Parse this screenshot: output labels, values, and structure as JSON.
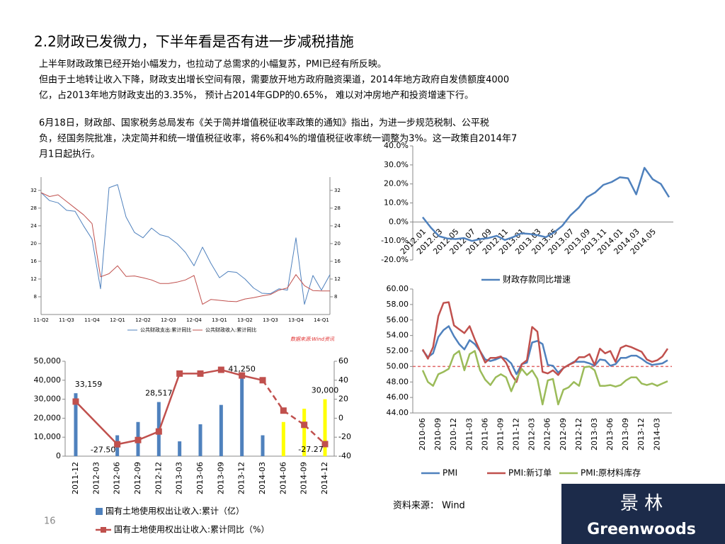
{
  "title": "2.2财政已发微力，下半年看是否有进一步减税措施",
  "paragraphs": [
    [
      "上半年财政政策已经开始小幅发力，也拉动了总需求的小幅复苏，PMI已经有所反映。",
      "但由于土地转让收入下降，财政支出增长空间有限，需要放开地方政府融资渠道，2014年地方政府自发债额度4000",
      "亿，占2013年地方财政支出的3.35%， 预计占2014年GDP的0.65%， 难以对冲房地产和投资增速下行。"
    ],
    [
      "6月18日，财政部、国家税务总局发布《关于简并增值税征收率政策的通知》指出，为进一步规范税制、公平税",
      "负，经国务院批准，决定简并和统一增值税征收率，将6%和4%的增值税征收率统一调整为3%。这一政策自2014年7",
      "月1日起执行。"
    ]
  ],
  "source": "资料来源： Wind",
  "page_number": "16",
  "logo": {
    "chinese": "景 林",
    "english": "Greenwoods"
  },
  "chart_data": [
    {
      "type": "line",
      "note": "数据来源:Wind资讯",
      "categories": [
        "11-Q2",
        null,
        null,
        "11-Q3",
        null,
        null,
        "11-Q4",
        null,
        null,
        "12-Q1",
        null,
        null,
        "12-Q2",
        null,
        null,
        "12-Q3",
        null,
        null,
        "12-Q4",
        null,
        null,
        "13-Q1",
        null,
        null,
        "13-Q2",
        null,
        null,
        "13-Q3",
        null,
        null,
        "13-Q4",
        null,
        null,
        "14-Q1",
        null
      ],
      "ylim": [
        4,
        35
      ],
      "yticks": [
        8,
        12,
        16,
        20,
        24,
        28,
        32
      ],
      "y2lim": [
        4,
        35
      ],
      "y2ticks": [
        8,
        12,
        16,
        20,
        24,
        28,
        32
      ],
      "series": [
        {
          "name": "公共财政支出:累计同比",
          "color": "#4f81bd",
          "values": [
            31.5,
            29.7,
            29.2,
            27.5,
            27.3,
            24,
            21,
            9.8,
            32.6,
            33.3,
            26,
            22.5,
            21.3,
            23.5,
            22,
            21.5,
            20,
            18,
            15,
            19.2,
            15.5,
            12.3,
            13.7,
            13.5,
            12,
            10,
            8.8,
            8.7,
            9.8,
            9.5,
            21.3,
            6.3,
            12.8,
            9.5,
            13
          ]
        },
        {
          "name": "公共财政收入:累计同比",
          "color": "#c0504d",
          "values": [
            31.5,
            30.6,
            31,
            29.5,
            28,
            26.5,
            24.5,
            12.5,
            13.2,
            15,
            12.6,
            12.7,
            12.3,
            11.8,
            11,
            11,
            11.3,
            11.8,
            12.8,
            6.3,
            7.4,
            7.2,
            7,
            6.9,
            7.5,
            7.8,
            8.2,
            8.5,
            9.5,
            10,
            13,
            10.5,
            9.4,
            9.3,
            9.3
          ]
        }
      ]
    },
    {
      "type": "line",
      "categories": [
        "2012.01",
        null,
        "2012.03",
        null,
        "2012.05",
        null,
        "2012.07",
        null,
        "2012.09",
        null,
        "2012.11",
        null,
        "2013.01",
        null,
        "2013.03",
        null,
        "2013.05",
        null,
        "2013.07",
        null,
        "2013.09",
        null,
        "2013.11",
        null,
        "2014.01",
        null,
        "2014.03",
        null,
        "2014.05",
        null,
        null
      ],
      "ylim": [
        -20,
        40
      ],
      "yticks": [
        {
          "value": -20,
          "label": "-20.0%"
        },
        {
          "value": -10,
          "label": "-10.0%"
        },
        {
          "value": 0,
          "label": "0.0%"
        },
        {
          "value": 10,
          "label": "10.0%"
        },
        {
          "value": 20,
          "label": "20.0%"
        },
        {
          "value": 30,
          "label": "30.0%"
        },
        {
          "value": 40,
          "label": "40.0%"
        }
      ],
      "series": [
        {
          "name": "财政存款同比增速",
          "color": "#4f81bd",
          "values": [
            2.5,
            -3,
            -7.5,
            -8.7,
            -9,
            -8.5,
            -10,
            -9,
            -8.5,
            -7.3,
            -9.5,
            -8,
            -6,
            -6.3,
            -7,
            -8,
            -5.5,
            -2,
            3.5,
            7.5,
            13,
            15.5,
            19.5,
            21,
            23.5,
            23,
            14.5,
            28.5,
            22.5,
            20,
            13
          ]
        }
      ]
    },
    {
      "type": "bar",
      "categories": [
        "2011-12",
        "2012-03",
        "2012-06",
        "2012-09",
        "2012-12",
        "2013-03",
        "2013-06",
        "2013-09",
        "2013-12",
        "2014-03",
        "2014-06",
        "2014-09",
        "2014-12"
      ],
      "ylim": [
        0,
        50000
      ],
      "yticks": [
        0,
        {
          "value": 10000,
          "label": "10,000"
        },
        {
          "value": 20000,
          "label": "20,000"
        },
        {
          "value": 30000,
          "label": "30,000"
        },
        {
          "value": 40000,
          "label": "40,000"
        },
        {
          "value": 50000,
          "label": "50,000"
        }
      ],
      "y2lim": [
        -40,
        60
      ],
      "y2ticks": [
        -40,
        -20,
        0,
        20,
        40,
        60
      ],
      "series": [
        {
          "name": "国有土地使用权出让收入:累计（亿）",
          "type": "bar",
          "color": "#4f81bd",
          "colors": [
            "#4f81bd",
            "#4f81bd",
            "#4f81bd",
            "#4f81bd",
            "#4f81bd",
            "#4f81bd",
            "#4f81bd",
            "#4f81bd",
            "#4f81bd",
            "#4f81bd",
            "#ffff00",
            "#ffff00",
            "#ffff00"
          ],
          "values": [
            33159,
            null,
            11000,
            18000,
            28517,
            7800,
            16800,
            27000,
            41250,
            11000,
            18000,
            25000,
            30000
          ],
          "value_labels": [
            "33,159",
            null,
            null,
            null,
            "28,517",
            null,
            null,
            null,
            "41,250",
            null,
            null,
            null,
            "30,000"
          ]
        },
        {
          "name": "国有土地使用权出让收入:累计同比（%）",
          "type": "line",
          "axis": "y2",
          "color": "#c0504d",
          "values": [
            17.5,
            null,
            -27.5,
            -23,
            -14,
            47,
            47,
            51,
            45,
            40,
            8,
            -7,
            -27.27
          ],
          "value_labels": [
            null,
            null,
            "-27.50",
            null,
            null,
            null,
            null,
            null,
            null,
            null,
            null,
            null,
            "-27.27"
          ]
        }
      ]
    },
    {
      "type": "line",
      "categories": [
        "2010-06",
        null,
        null,
        "2010-09",
        null,
        null,
        "2010-12",
        null,
        null,
        "2011-03",
        null,
        null,
        "2011-06",
        null,
        null,
        "2011-09",
        null,
        null,
        "2011-12",
        null,
        null,
        "2012-03",
        null,
        null,
        "2012-06",
        null,
        null,
        "2012-09",
        null,
        null,
        "2012-12",
        null,
        null,
        "2013-03",
        null,
        null,
        "2013-06",
        null,
        null,
        "2013-09",
        null,
        null,
        "2013-12",
        null,
        null,
        "2014-03",
        null,
        null
      ],
      "ylim": [
        44,
        60
      ],
      "yticks": [
        {
          "value": 44,
          "label": "44.00"
        },
        {
          "value": 46,
          "label": "46.00"
        },
        {
          "value": 48,
          "label": "48.00"
        },
        {
          "value": 50,
          "label": "50.00"
        },
        {
          "value": 52,
          "label": "52.00"
        },
        {
          "value": 54,
          "label": "54.00"
        },
        {
          "value": 56,
          "label": "56.00"
        },
        {
          "value": 58,
          "label": "58.00"
        },
        {
          "value": 60,
          "label": "60.00"
        }
      ],
      "reference_line": {
        "value": 50,
        "color": "#e06666"
      },
      "series": [
        {
          "name": "PMI",
          "color": "#4f81bd",
          "values": [
            52.1,
            51.2,
            51.7,
            53.8,
            54.7,
            55.2,
            53.9,
            52.9,
            52.2,
            53.4,
            52.9,
            52.0,
            50.9,
            50.7,
            50.9,
            51.2,
            51.0,
            50.4,
            49.0,
            50.3,
            50.5,
            53.1,
            53.3,
            52.9,
            50.2,
            50.1,
            49.2,
            49.8,
            50.2,
            50.6,
            50.6,
            50.6,
            50.4,
            50.1,
            50.9,
            50.8,
            50.1,
            50.3,
            51.1,
            51.1,
            51.4,
            51.4,
            51.0,
            50.5,
            50.2,
            50.3,
            50.4,
            50.8
          ]
        },
        {
          "name": "PMI:新订单",
          "color": "#c0504d",
          "values": [
            52.2,
            51,
            52.5,
            56.5,
            58.2,
            58.3,
            55.3,
            54.8,
            54.3,
            55.2,
            53.5,
            52,
            50.5,
            51.1,
            51.1,
            51.3,
            50.5,
            49,
            48,
            50.3,
            50.8,
            55.1,
            54.5,
            49.3,
            49.1,
            49.5,
            48.9,
            49.8,
            50.2,
            50.5,
            51.2,
            51.2,
            51.6,
            50.2,
            52.3,
            51.7,
            52,
            50.6,
            52.4,
            52.7,
            52.5,
            52.2,
            51.9,
            50.9,
            50.6,
            50.8,
            51.3,
            52.3
          ]
        },
        {
          "name": "PMI:原材料库存",
          "color": "#9bbb59",
          "values": [
            49.5,
            48,
            47.5,
            49,
            49.3,
            49.7,
            51.5,
            52,
            49.5,
            51.6,
            52,
            49.5,
            48.3,
            47.6,
            48.6,
            49,
            48.6,
            46.8,
            48.4,
            49.7,
            48.9,
            49.5,
            48.4,
            45.1,
            48.2,
            48.4,
            45.1,
            47,
            47.3,
            48,
            47.5,
            49.9,
            50,
            49.5,
            47.5,
            47.5,
            47.6,
            47.4,
            47.6,
            48.2,
            48.6,
            48.6,
            47.8,
            47.6,
            47.8,
            47.5,
            47.8,
            48.1
          ]
        }
      ]
    }
  ]
}
